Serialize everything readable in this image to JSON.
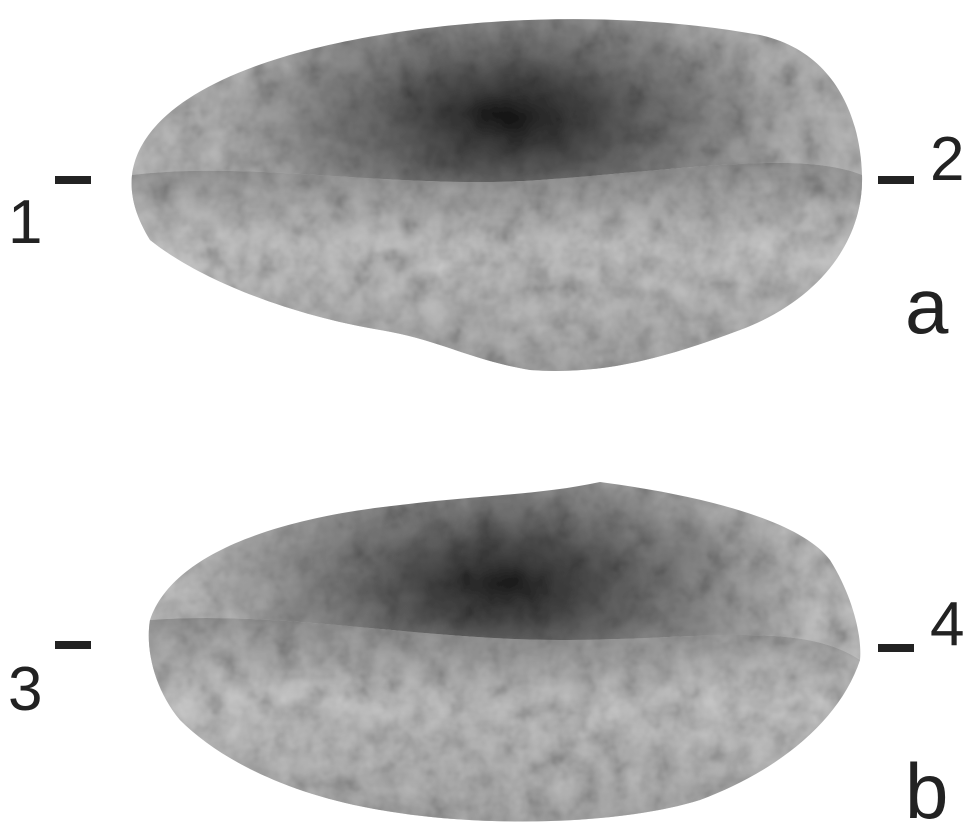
{
  "panels": [
    {
      "label": "a",
      "markers": [
        "1",
        "2"
      ]
    },
    {
      "label": "b",
      "markers": [
        "3",
        "4"
      ]
    }
  ]
}
